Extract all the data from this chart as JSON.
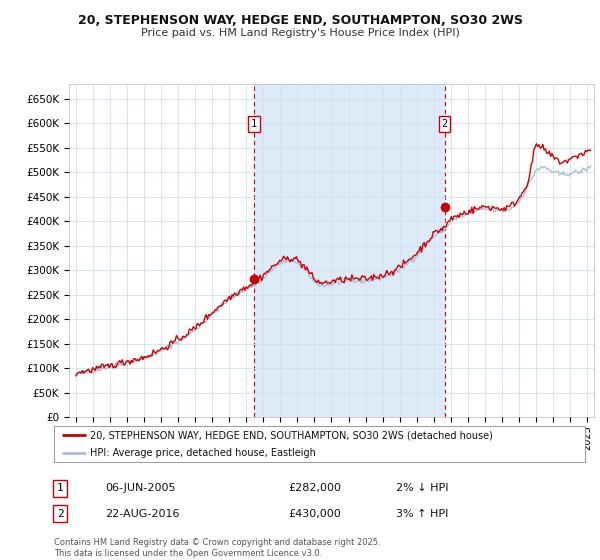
{
  "title_line1": "20, STEPHENSON WAY, HEDGE END, SOUTHAMPTON, SO30 2WS",
  "title_line2": "Price paid vs. HM Land Registry's House Price Index (HPI)",
  "legend_line1": "20, STEPHENSON WAY, HEDGE END, SOUTHAMPTON, SO30 2WS (detached house)",
  "legend_line2": "HPI: Average price, detached house, Eastleigh",
  "annotation1_label": "1",
  "annotation1_date": "06-JUN-2005",
  "annotation1_price": "£282,000",
  "annotation1_hpi": "2% ↓ HPI",
  "annotation2_label": "2",
  "annotation2_date": "22-AUG-2016",
  "annotation2_price": "£430,000",
  "annotation2_hpi": "3% ↑ HPI",
  "footer": "Contains HM Land Registry data © Crown copyright and database right 2025.\nThis data is licensed under the Open Government Licence v3.0.",
  "hpi_color": "#aabfd8",
  "price_color": "#cc0000",
  "marker_color": "#cc0000",
  "background_color": "#ffffff",
  "grid_color": "#d0dff0",
  "shade_color": "#ddeaf8",
  "vline_color": "#cc0000",
  "ylim": [
    0,
    680000
  ],
  "yticks": [
    0,
    50000,
    100000,
    150000,
    200000,
    250000,
    300000,
    350000,
    400000,
    450000,
    500000,
    550000,
    600000,
    650000
  ],
  "ytick_labels": [
    "£0",
    "£50K",
    "£100K",
    "£150K",
    "£200K",
    "£250K",
    "£300K",
    "£350K",
    "£400K",
    "£450K",
    "£500K",
    "£550K",
    "£600K",
    "£650K"
  ],
  "sale1_year": 2005.44,
  "sale1_price": 282000,
  "sale2_year": 2016.64,
  "sale2_price": 430000
}
